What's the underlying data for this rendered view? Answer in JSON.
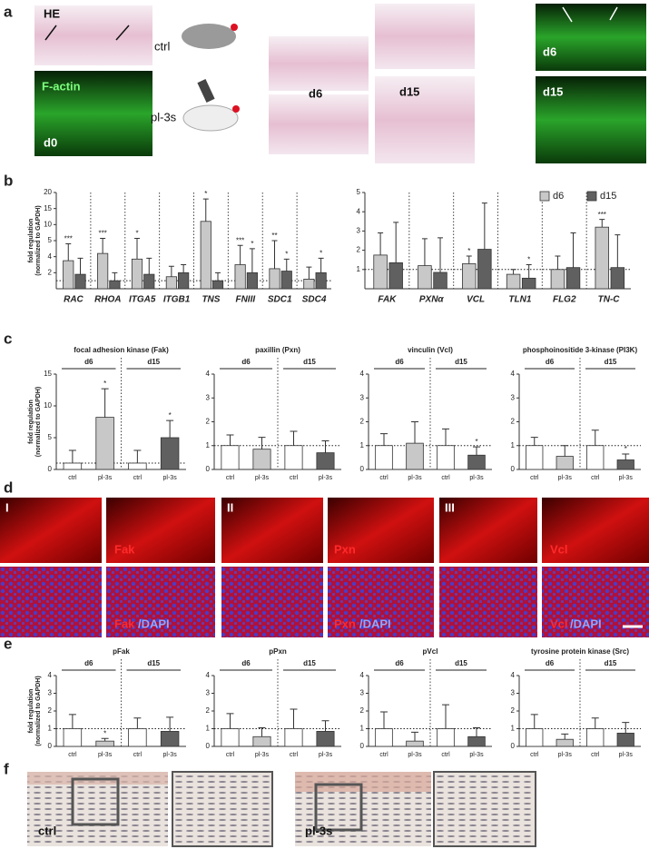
{
  "panel_labels": [
    "a",
    "b",
    "c",
    "d",
    "e",
    "f"
  ],
  "panel_a": {
    "he": "HE",
    "factin": "F-actin",
    "d0": "d0",
    "ctrl": "ctrl",
    "pl3s": "pl-3s",
    "d6": "d6",
    "d15": "d15",
    "d6_green": "d6",
    "d15_green": "d15"
  },
  "panel_d": {
    "rows": [
      "I",
      "II",
      "III"
    ],
    "markers": [
      "Fak",
      "Pxn",
      "Vcl"
    ],
    "dapi": "/DAPI"
  },
  "panel_f": {
    "labels": [
      "ctrl",
      "pl-3s"
    ]
  },
  "chart_data": [
    {
      "type": "bar",
      "ylabel": [
        "fold regulation",
        "(normalized to GAPDH)"
      ],
      "categories": [
        "RAC",
        "RHOA",
        "ITGA5",
        "ITGB1",
        "TNS",
        "FNIII",
        "SDC1",
        "SDC4"
      ],
      "series": [
        {
          "color": "#c8c8c8",
          "values": [
            3.5,
            4.2,
            3.7,
            1.5,
            11,
            3,
            2.5,
            1.2
          ],
          "errors": [
            1.3,
            1.5,
            2,
            1.3,
            7,
            1.7,
            2.5,
            1.5
          ],
          "annotations": [
            "***",
            "***",
            "*",
            null,
            "*",
            "***",
            "**",
            null
          ]
        },
        {
          "color": "#606060",
          "values": [
            1.8,
            1,
            1.8,
            2,
            1,
            2,
            2.2,
            2
          ],
          "errors": [
            2,
            1,
            2,
            1,
            1,
            2.5,
            1.5,
            1.8
          ],
          "annotations": [
            null,
            null,
            null,
            null,
            null,
            "*",
            "*",
            "*"
          ]
        }
      ],
      "ylim": [
        0,
        20
      ],
      "yticks": [
        2,
        4,
        5,
        10,
        15,
        20
      ],
      "reference_line": 1
    },
    {
      "type": "bar",
      "categories": [
        "FAK",
        "PXNα",
        "VCL",
        "TLN1",
        "FLG2",
        "TN-C"
      ],
      "series": [
        {
          "name": "d6",
          "color": "#c8c8c8",
          "values": [
            1.75,
            1.2,
            1.3,
            0.75,
            1,
            3.2
          ],
          "errors": [
            1.15,
            1.4,
            0.4,
            0.25,
            0.7,
            0.4
          ],
          "annotations": [
            null,
            null,
            "*",
            null,
            null,
            "***"
          ]
        },
        {
          "name": "d15",
          "color": "#606060",
          "values": [
            1.35,
            0.85,
            2.05,
            0.55,
            1.1,
            1.1
          ],
          "errors": [
            2.1,
            1.8,
            2.4,
            0.7,
            1.8,
            1.7
          ],
          "annotations": [
            null,
            null,
            null,
            "*",
            null,
            null
          ]
        }
      ],
      "ylim": [
        0,
        5
      ],
      "yticks": [
        1,
        2,
        3,
        4,
        5
      ],
      "reference_line": 1,
      "legend": "top-right"
    },
    {
      "type": "bar",
      "title": "focal adhesion kinase (Fak)",
      "ylabel": [
        "fold regulation",
        "(normalized to GAPDH)"
      ],
      "categories": [
        "ctrl",
        "pl-3s",
        "ctrl",
        "pl-3s"
      ],
      "groups": [
        "d6",
        "d15"
      ],
      "values": [
        1,
        8.2,
        1,
        5
      ],
      "errors": [
        2,
        4.5,
        2,
        2.7
      ],
      "annotations": [
        null,
        "*",
        null,
        "*"
      ],
      "colors": [
        "#ffffff",
        "#c8c8c8",
        "#ffffff",
        "#606060"
      ],
      "ylim": [
        0,
        15
      ],
      "yticks": [
        0,
        5,
        10,
        15
      ],
      "reference_line": 1
    },
    {
      "type": "bar",
      "title": "paxillin (Pxn)",
      "categories": [
        "ctrl",
        "pl-3s",
        "ctrl",
        "pl-3s"
      ],
      "groups": [
        "d6",
        "d15"
      ],
      "values": [
        1,
        0.85,
        1,
        0.7
      ],
      "errors": [
        0.45,
        0.5,
        0.6,
        0.5
      ],
      "colors": [
        "#ffffff",
        "#c8c8c8",
        "#ffffff",
        "#606060"
      ],
      "ylim": [
        0,
        4
      ],
      "yticks": [
        0,
        1,
        2,
        3,
        4
      ],
      "reference_line": 1
    },
    {
      "type": "bar",
      "title": "vinculin (Vcl)",
      "categories": [
        "ctrl",
        "pl-3s",
        "ctrl",
        "pl-3s"
      ],
      "groups": [
        "d6",
        "d15"
      ],
      "values": [
        1,
        1.1,
        1,
        0.6
      ],
      "errors": [
        0.5,
        0.9,
        0.7,
        0.35
      ],
      "annotations": [
        null,
        null,
        null,
        "*"
      ],
      "colors": [
        "#ffffff",
        "#c8c8c8",
        "#ffffff",
        "#606060"
      ],
      "ylim": [
        0,
        4
      ],
      "yticks": [
        0,
        1,
        2,
        3,
        4
      ],
      "reference_line": 1
    },
    {
      "type": "bar",
      "title": "phosphoinositide 3-kinase (PI3K)",
      "categories": [
        "ctrl",
        "pl-3s",
        "ctrl",
        "pl-3s"
      ],
      "groups": [
        "d6",
        "d15"
      ],
      "values": [
        1,
        0.55,
        1,
        0.4
      ],
      "errors": [
        0.35,
        0.45,
        0.65,
        0.25
      ],
      "annotations": [
        null,
        null,
        null,
        "*"
      ],
      "colors": [
        "#ffffff",
        "#c8c8c8",
        "#ffffff",
        "#606060"
      ],
      "ylim": [
        0,
        4
      ],
      "yticks": [
        0,
        1,
        2,
        3,
        4
      ],
      "reference_line": 1
    },
    {
      "type": "bar",
      "title": "pFak",
      "ylabel": [
        "fold regulation",
        "(normalized to GAPDH)"
      ],
      "categories": [
        "ctrl",
        "pl-3s",
        "ctrl",
        "pl-3s"
      ],
      "groups": [
        "d6",
        "d15"
      ],
      "values": [
        1,
        0.3,
        1,
        0.85
      ],
      "errors": [
        0.8,
        0.15,
        0.6,
        0.8
      ],
      "annotations": [
        null,
        "*",
        null,
        null
      ],
      "colors": [
        "#ffffff",
        "#c8c8c8",
        "#ffffff",
        "#606060"
      ],
      "ylim": [
        0,
        4
      ],
      "yticks": [
        0,
        1,
        2,
        3,
        4
      ],
      "reference_line": 1
    },
    {
      "type": "bar",
      "title": "pPxn",
      "categories": [
        "ctrl",
        "pl-3s",
        "ctrl",
        "pl-3s"
      ],
      "groups": [
        "d6",
        "d15"
      ],
      "values": [
        1,
        0.55,
        1,
        0.85
      ],
      "errors": [
        0.85,
        0.5,
        1.1,
        0.6
      ],
      "colors": [
        "#ffffff",
        "#c8c8c8",
        "#ffffff",
        "#606060"
      ],
      "ylim": [
        0,
        4
      ],
      "yticks": [
        0,
        1,
        2,
        3,
        4
      ],
      "reference_line": 1
    },
    {
      "type": "bar",
      "title": "pVcl",
      "categories": [
        "ctrl",
        "pl-3s",
        "ctrl",
        "pl-3s"
      ],
      "groups": [
        "d6",
        "d15"
      ],
      "values": [
        1,
        0.3,
        1,
        0.55
      ],
      "errors": [
        0.95,
        0.5,
        1.35,
        0.5
      ],
      "colors": [
        "#ffffff",
        "#c8c8c8",
        "#ffffff",
        "#606060"
      ],
      "ylim": [
        0,
        4
      ],
      "yticks": [
        0,
        1,
        2,
        3,
        4
      ],
      "reference_line": 1
    },
    {
      "type": "bar",
      "title": "tyrosine protein kinase (Src)",
      "categories": [
        "ctrl",
        "pl-3s",
        "ctrl",
        "pl-3s"
      ],
      "groups": [
        "d6",
        "d15"
      ],
      "values": [
        1,
        0.4,
        1,
        0.75
      ],
      "errors": [
        0.8,
        0.3,
        0.6,
        0.6
      ],
      "colors": [
        "#ffffff",
        "#c8c8c8",
        "#ffffff",
        "#606060"
      ],
      "ylim": [
        0,
        4
      ],
      "yticks": [
        0,
        1,
        2,
        3,
        4
      ],
      "reference_line": 1
    }
  ]
}
